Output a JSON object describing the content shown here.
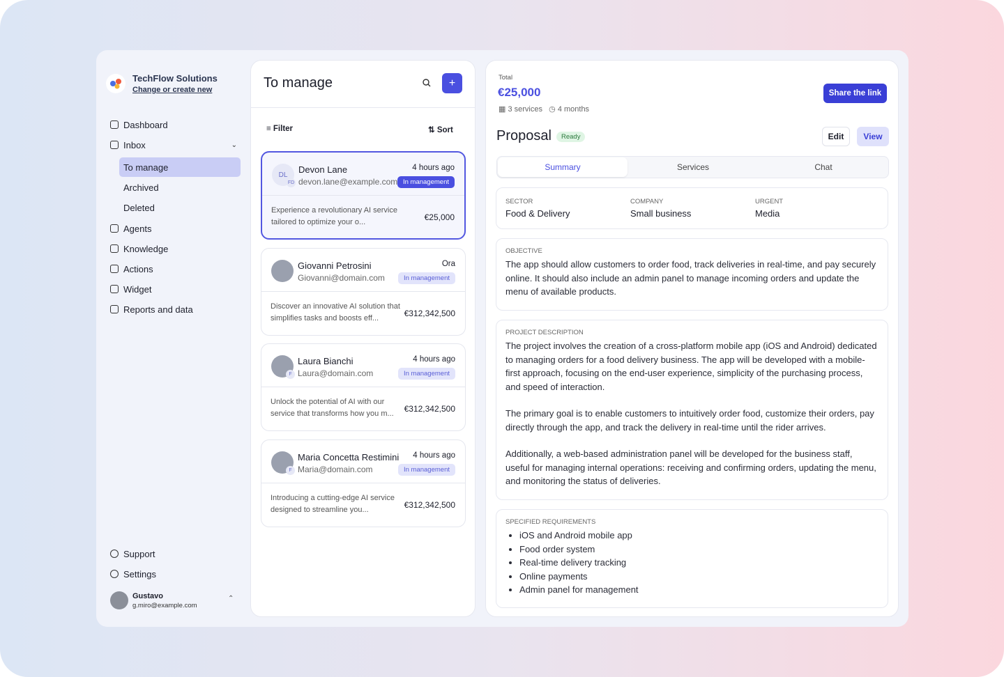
{
  "org": {
    "name": "TechFlow Solutions",
    "action": "Change or create new"
  },
  "nav": [
    {
      "label": "Dashboard"
    },
    {
      "label": "Inbox",
      "children": [
        "To manage",
        "Archived",
        "Deleted"
      ]
    },
    {
      "label": "Agents"
    },
    {
      "label": "Knowledge"
    },
    {
      "label": "Actions"
    },
    {
      "label": "Widget"
    },
    {
      "label": "Reports and data"
    }
  ],
  "footer_nav": [
    "Support",
    "Settings"
  ],
  "user": {
    "name": "Gustavo",
    "email": "g.miro@example.com"
  },
  "list": {
    "title": "To manage",
    "filter": "Filter",
    "sort": "Sort",
    "items": [
      {
        "initials": "DL",
        "tag": "FD",
        "name": "Devon Lane",
        "email": "devon.lane@example.com",
        "time": "4 hours ago",
        "status": "In management",
        "summary": "Experience a revolutionary AI service tailored to optimize your o...",
        "amount": "€25,000"
      },
      {
        "tag": "",
        "name": "Giovanni Petrosini",
        "email": "Giovanni@domain.com",
        "time": "Ora",
        "status": "In management",
        "summary": "Discover an innovative AI solution that simplifies tasks and boosts eff...",
        "amount": "€312,342,500"
      },
      {
        "tag": "F",
        "name": "Laura Bianchi",
        "email": "Laura@domain.com",
        "time": "4 hours ago",
        "status": "In management",
        "summary": "Unlock the potential of AI with our service that transforms how you m...",
        "amount": "€312,342,500"
      },
      {
        "tag": "F",
        "name": "Maria Concetta Restimini",
        "email": "Maria@domain.com",
        "time": "4 hours ago",
        "status": "In management",
        "summary": "Introducing a cutting-edge AI service designed to streamline you...",
        "amount": "€312,342,500"
      }
    ]
  },
  "detail": {
    "total_label": "Total",
    "total": "€25,000",
    "services": "3 services",
    "duration": "4 months",
    "share": "Share the link",
    "title": "Proposal",
    "status": "Ready",
    "edit": "Edit",
    "view": "View",
    "tabs": [
      "Summary",
      "Services",
      "Chat"
    ],
    "fields": [
      {
        "label": "SECTOR",
        "value": "Food & Delivery"
      },
      {
        "label": "COMPANY",
        "value": "Small business"
      },
      {
        "label": "URGENT",
        "value": "Media"
      }
    ],
    "objective": {
      "label": "OBJECTIVE",
      "text": "The app should allow customers to order food, track deliveries in real-time, and pay securely online. It should also include an admin panel to manage incoming orders and update the menu of available products."
    },
    "description": {
      "label": "PROJECT DESCRIPTION",
      "paragraphs": [
        "The project involves the creation of a cross-platform mobile app (iOS and Android) dedicated to managing orders for a food delivery business. The app will be developed with a mobile-first approach, focusing on the end-user experience, simplicity of the purchasing process, and speed of interaction.",
        "The primary goal is to enable customers to intuitively order food, customize their orders, pay directly through the app, and track the delivery in real-time until the rider arrives.",
        "Additionally, a web-based administration panel will be developed for the business staff, useful for managing internal operations: receiving and confirming orders, updating the menu, and monitoring the status of deliveries."
      ]
    },
    "requirements": {
      "label": "SPECIFIED REQUIREMENTS",
      "items": [
        "iOS and Android mobile app",
        "Food order system",
        "Real-time delivery tracking",
        "Online payments",
        "Admin panel for management"
      ]
    }
  }
}
